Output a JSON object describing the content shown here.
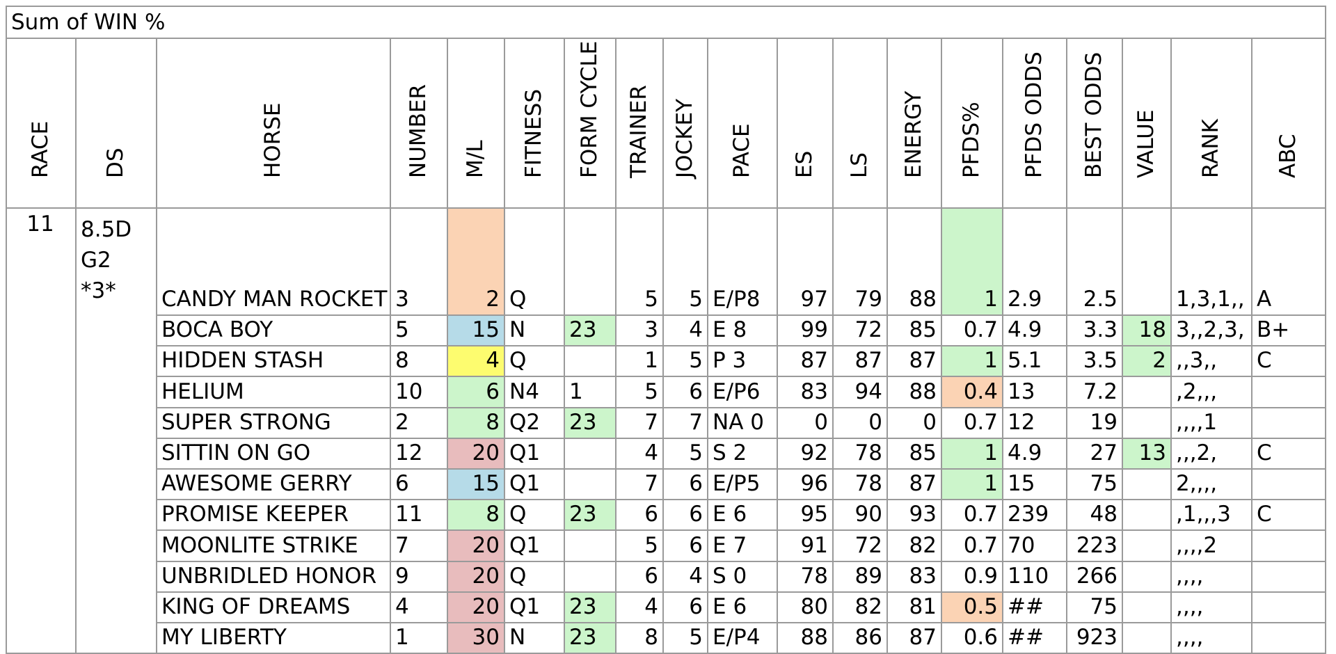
{
  "pivot_title": "Sum of WIN %",
  "colors": {
    "grid": "#9a9a9a",
    "orange": "#fbd3b4",
    "blue": "#b6dbe8",
    "yellow": "#fdfc6f",
    "green": "#ccf5cb",
    "red": "#e8bcbd"
  },
  "columns": [
    "RACE",
    "DS",
    "HORSE",
    "NUMBER",
    "M/L",
    "FITNESS",
    "FORM CYCLE",
    "TRAINER",
    "JOCKEY",
    "PACE",
    "ES",
    "LS",
    "ENERGY",
    "PFDS%",
    "PFDS ODDS",
    "BEST ODDS",
    "VALUE",
    "RANK",
    "ABC"
  ],
  "race": "11",
  "ds_lines": [
    "8.5D",
    "G2",
    "*3*"
  ],
  "rows": [
    {
      "horse": "CANDY MAN ROCKET",
      "number": "3",
      "ml": "2",
      "ml_color": "orange",
      "fitness": "Q",
      "form": "",
      "form_color": "",
      "trainer": "5",
      "jockey": "5",
      "pace": "E/P8",
      "es": "97",
      "ls": "79",
      "energy": "88",
      "pfds": "1",
      "pfds_color": "green",
      "pfds_odds": "2.9",
      "best_odds": "2.5",
      "value": "",
      "value_color": "",
      "rank": "1,3,1,,",
      "abc": "A"
    },
    {
      "horse": "BOCA BOY",
      "number": "5",
      "ml": "15",
      "ml_color": "blue",
      "fitness": "N",
      "form": "23",
      "form_color": "green",
      "trainer": "3",
      "jockey": "4",
      "pace": "E  8",
      "es": "99",
      "ls": "72",
      "energy": "85",
      "pfds": "0.7",
      "pfds_color": "",
      "pfds_odds": "4.9",
      "best_odds": "3.3",
      "value": "18",
      "value_color": "green",
      "rank": "3,,2,3,",
      "abc": "B+"
    },
    {
      "horse": "HIDDEN STASH",
      "number": "8",
      "ml": "4",
      "ml_color": "yellow",
      "fitness": "Q",
      "form": "",
      "form_color": "",
      "trainer": "1",
      "jockey": "5",
      "pace": "P  3",
      "es": "87",
      "ls": "87",
      "energy": "87",
      "pfds": "1",
      "pfds_color": "green",
      "pfds_odds": "5.1",
      "best_odds": "3.5",
      "value": "2",
      "value_color": "green",
      "rank": ",,3,,",
      "abc": "C"
    },
    {
      "horse": "HELIUM",
      "number": "10",
      "ml": "6",
      "ml_color": "green",
      "fitness": "N4",
      "form": "1",
      "form_color": "",
      "trainer": "5",
      "jockey": "6",
      "pace": "E/P6",
      "es": "83",
      "ls": "94",
      "energy": "88",
      "pfds": "0.4",
      "pfds_color": "orange",
      "pfds_odds": "13",
      "best_odds": "7.2",
      "value": "",
      "value_color": "",
      "rank": ",2,,,",
      "abc": ""
    },
    {
      "horse": "SUPER STRONG",
      "number": "2",
      "ml": "8",
      "ml_color": "green",
      "fitness": "Q2",
      "form": "23",
      "form_color": "green",
      "trainer": "7",
      "jockey": "7",
      "pace": "NA 0",
      "es": "0",
      "ls": "0",
      "energy": "0",
      "pfds": "0.7",
      "pfds_color": "",
      "pfds_odds": "12",
      "best_odds": "19",
      "value": "",
      "value_color": "",
      "rank": ",,,,1",
      "abc": ""
    },
    {
      "horse": "SITTIN ON GO",
      "number": "12",
      "ml": "20",
      "ml_color": "red",
      "fitness": "Q1",
      "form": "",
      "form_color": "",
      "trainer": "4",
      "jockey": "5",
      "pace": "S  2",
      "es": "92",
      "ls": "78",
      "energy": "85",
      "pfds": "1",
      "pfds_color": "green",
      "pfds_odds": "4.9",
      "best_odds": "27",
      "value": "13",
      "value_color": "green",
      "rank": ",,,2,",
      "abc": "C"
    },
    {
      "horse": "AWESOME GERRY",
      "number": "6",
      "ml": "15",
      "ml_color": "blue",
      "fitness": "Q1",
      "form": "",
      "form_color": "",
      "trainer": "7",
      "jockey": "6",
      "pace": "E/P5",
      "es": "96",
      "ls": "78",
      "energy": "87",
      "pfds": "1",
      "pfds_color": "green",
      "pfds_odds": "15",
      "best_odds": "75",
      "value": "",
      "value_color": "",
      "rank": "2,,,,",
      "abc": ""
    },
    {
      "horse": "PROMISE KEEPER",
      "number": "11",
      "ml": "8",
      "ml_color": "green",
      "fitness": "Q",
      "form": "23",
      "form_color": "green",
      "trainer": "6",
      "jockey": "6",
      "pace": "E  6",
      "es": "95",
      "ls": "90",
      "energy": "93",
      "pfds": "0.7",
      "pfds_color": "",
      "pfds_odds": "239",
      "best_odds": "48",
      "value": "",
      "value_color": "",
      "rank": ",1,,,3",
      "abc": "C"
    },
    {
      "horse": "MOONLITE STRIKE",
      "number": "7",
      "ml": "20",
      "ml_color": "red",
      "fitness": "Q1",
      "form": "",
      "form_color": "",
      "trainer": "5",
      "jockey": "6",
      "pace": "E  7",
      "es": "91",
      "ls": "72",
      "energy": "82",
      "pfds": "0.7",
      "pfds_color": "",
      "pfds_odds": "70",
      "best_odds": "223",
      "value": "",
      "value_color": "",
      "rank": ",,,,2",
      "abc": ""
    },
    {
      "horse": "UNBRIDLED HONOR",
      "number": "9",
      "ml": "20",
      "ml_color": "red",
      "fitness": "Q",
      "form": "",
      "form_color": "",
      "trainer": "6",
      "jockey": "4",
      "pace": "S  0",
      "es": "78",
      "ls": "89",
      "energy": "83",
      "pfds": "0.9",
      "pfds_color": "",
      "pfds_odds": "110",
      "best_odds": "266",
      "value": "",
      "value_color": "",
      "rank": ",,,,",
      "abc": ""
    },
    {
      "horse": "KING OF DREAMS",
      "number": "4",
      "ml": "20",
      "ml_color": "red",
      "fitness": "Q1",
      "form": "23",
      "form_color": "green",
      "trainer": "4",
      "jockey": "6",
      "pace": "E  6",
      "es": "80",
      "ls": "82",
      "energy": "81",
      "pfds": "0.5",
      "pfds_color": "orange",
      "pfds_odds": "##",
      "best_odds": "75",
      "value": "",
      "value_color": "",
      "rank": ",,,,",
      "abc": ""
    },
    {
      "horse": "MY LIBERTY",
      "number": "1",
      "ml": "30",
      "ml_color": "red",
      "fitness": "N",
      "form": "23",
      "form_color": "green",
      "trainer": "8",
      "jockey": "5",
      "pace": "E/P4",
      "es": "88",
      "ls": "86",
      "energy": "87",
      "pfds": "0.6",
      "pfds_color": "",
      "pfds_odds": "##",
      "best_odds": "923",
      "value": "",
      "value_color": "",
      "rank": ",,,,",
      "abc": ""
    }
  ]
}
